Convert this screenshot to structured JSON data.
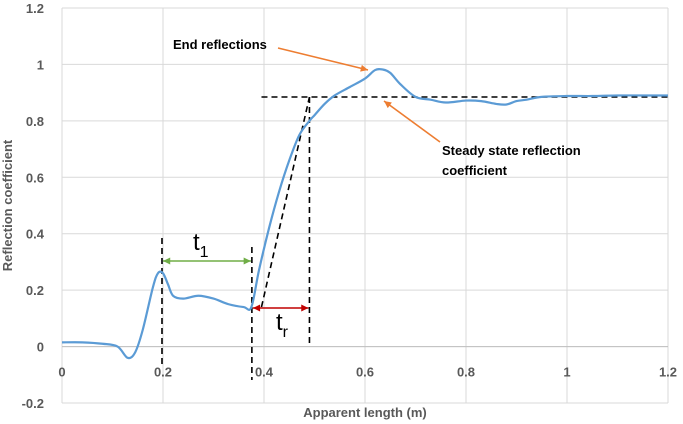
{
  "chart_data": {
    "type": "line",
    "xlabel": "Apparent length (m)",
    "ylabel": "Reflection coefficient",
    "xlim": [
      0,
      1.2
    ],
    "ylim": [
      -0.2,
      1.2
    ],
    "xticks": [
      "0",
      "0.2",
      "0.4",
      "0.6",
      "0.8",
      "1",
      "1.2"
    ],
    "yticks": [
      "-0.2",
      "0",
      "0.2",
      "0.4",
      "0.6",
      "0.8",
      "1",
      "1.2"
    ],
    "grid": true,
    "line_color": "#5b9bd5",
    "series": [
      {
        "x": [
          0,
          0.04,
          0.08,
          0.11,
          0.13,
          0.145,
          0.16,
          0.18,
          0.19,
          0.2,
          0.21,
          0.22,
          0.24,
          0.27,
          0.3,
          0.33,
          0.36,
          0.375,
          0.39,
          0.41,
          0.43,
          0.45,
          0.47,
          0.49,
          0.5,
          0.52,
          0.54,
          0.57,
          0.6,
          0.62,
          0.635,
          0.65,
          0.67,
          0.7,
          0.73,
          0.76,
          0.8,
          0.83,
          0.86,
          0.88,
          0.9,
          0.92,
          0.95,
          1,
          1.05,
          1.1,
          1.15,
          1.2
        ],
        "y": [
          0.015,
          0.015,
          0.01,
          0.0,
          -0.04,
          -0.02,
          0.06,
          0.21,
          0.26,
          0.26,
          0.22,
          0.18,
          0.17,
          0.18,
          0.17,
          0.15,
          0.14,
          0.14,
          0.27,
          0.42,
          0.55,
          0.66,
          0.75,
          0.8,
          0.82,
          0.86,
          0.89,
          0.92,
          0.95,
          0.98,
          0.982,
          0.97,
          0.93,
          0.885,
          0.875,
          0.865,
          0.872,
          0.87,
          0.86,
          0.858,
          0.87,
          0.875,
          0.885,
          0.888,
          0.888,
          0.89,
          0.89,
          0.89
        ]
      }
    ],
    "annotations": {
      "end_reflections": "End reflections",
      "steady_state": "Steady state reflection coefficient",
      "t1_main": "t",
      "t1_sub": "1",
      "tr_main": "t",
      "tr_sub": "r"
    },
    "colors": {
      "t1_arrow": "#70ad47",
      "tr_arrow": "#c00000",
      "pointer_arrow": "#ed7d31"
    }
  }
}
